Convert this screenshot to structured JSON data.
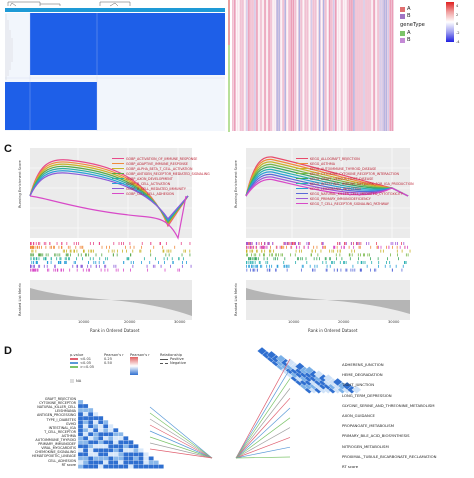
{
  "panels": {
    "c_letter": "C",
    "d_letter": "D"
  },
  "panel_b_legend": {
    "title": "geneType",
    "items": [
      {
        "label": "A",
        "color": "#e07070"
      },
      {
        "label": "B",
        "color": "#a074c4"
      },
      {
        "label": "A",
        "color": "#7cc46a"
      },
      {
        "label": "B",
        "color": "#c48ad6"
      }
    ],
    "scale": [
      "4",
      "2",
      "0",
      "-2",
      "-4"
    ]
  },
  "gsea_left": {
    "ylabel_top": "Running Enrichment Score",
    "ylabel_bottom": "Ranked List Metric",
    "xlabel": "Rank in Ordered Dataset",
    "yticks": [
      "0.6",
      "0.4",
      "0.2",
      "0.0",
      "-0.2",
      "-0.4"
    ],
    "xticks": [
      "10000",
      "20000",
      "30000"
    ],
    "terms": [
      {
        "label": "GOBP_ACTIVATION_OF_IMMUNE_RESPONSE",
        "color": "#e84a8a"
      },
      {
        "label": "GOBP_ADAPTIVE_IMMUNE_RESPONSE",
        "color": "#f08a3c"
      },
      {
        "label": "GOBP_ALPHA_BETA_T_CELL_ACTIVATION",
        "color": "#c9b42c"
      },
      {
        "label": "GOBP_ANTIGEN_RECEPTOR_MEDIATED_SIGNALING",
        "color": "#5aa84a"
      },
      {
        "label": "GOBP_AXON_DEVELOPMENT",
        "color": "#2ab0a0"
      },
      {
        "label": "GOBP_B_CELL_ACTIVATION",
        "color": "#2a9fd8"
      },
      {
        "label": "GOBP_B_CELL_MEDIATED_IMMUNITY",
        "color": "#8a5ad8"
      },
      {
        "label": "GOBP_CELL_CELL_ADHESION",
        "color": "#d84ac8"
      }
    ]
  },
  "gsea_right": {
    "ylabel_top": "Running Enrichment Score",
    "ylabel_bottom": "Ranked List Metric",
    "xlabel": "Rank in Ordered Dataset",
    "xticks": [
      "10000",
      "20000",
      "30000"
    ],
    "terms": [
      {
        "label": "KEGG_ALLOGRAFT_REJECTION",
        "color": "#e84a6a"
      },
      {
        "label": "KEGG_ASTHMA",
        "color": "#f08a3c"
      },
      {
        "label": "KEGG_AUTOIMMUNE_THYROID_DISEASE",
        "color": "#c9b42c"
      },
      {
        "label": "KEGG_CYTOKINE_CYTOKINE_RECEPTOR_INTERACTION",
        "color": "#7ab84a"
      },
      {
        "label": "KEGG_GRAFT_VERSUS_HOST_DISEASE",
        "color": "#3aa860"
      },
      {
        "label": "KEGG_INTESTINAL_IMMUNE_NETWORK_FOR_IGA_PRODUCTION",
        "color": "#2ab0b0"
      },
      {
        "label": "KEGG_LEISHMANIA_INFECTION",
        "color": "#2a9fd8"
      },
      {
        "label": "KEGG_NATURAL_KILLER_CELL_MEDIATED_CYTOTOXICITY",
        "color": "#5a6ad8"
      },
      {
        "label": "KEGG_PRIMARY_IMMUNODEFICIENCY",
        "color": "#a05ad8"
      },
      {
        "label": "KEGG_T_CELL_RECEPTOR_SIGNALING_PATHWAY",
        "color": "#d84ac8"
      }
    ]
  },
  "panel_d": {
    "legend": {
      "p_title": "p-value",
      "p_items": [
        "<0.01",
        "<0.05",
        ">=0.05"
      ],
      "r_title": "Pearson's r",
      "r_items": [
        "0.25",
        "0.50"
      ],
      "r2_title": "Pearson's r",
      "r2_items": [
        "-1.0",
        "-0.5",
        "0",
        "0.5",
        "1.0"
      ],
      "rel_title": "Relationship",
      "rel_items": [
        "Positive",
        "Negative"
      ],
      "na_label": "NA"
    },
    "right_labels": [
      "ADHERENS_JUNCTION",
      "HEME_DEGRADATION",
      "TIGHT_JUNCTION",
      "LONG_TERM_DEPRESSION",
      "GLYCINE_SERINE_AND_THREONINE_METABOLISM",
      "AXON_GUIDANCE",
      "PROPANOATE_METABOLISM",
      "PRIMARY_BILE_ACID_BIOSYNTHESIS",
      "NITROGEN_METABOLISM",
      "PROXIMAL_TUBULE_BICARBONATE_RECLAMATION",
      "RT score"
    ],
    "left_labels": [
      "GRAFT_REJECTION",
      "CYTOKINE_RECEPTOR",
      "NATURAL_KILLER_CELL",
      "LEISHMANIA",
      "ANTIGEN_PROCESSING",
      "TYPE_I_DIABETES",
      "GVHD",
      "INTESTINAL_IGA",
      "T_CELL_RECEPTOR",
      "ASTHMA",
      "AUTOIMMUNE_THYROID",
      "PRIMARY_IMMUNODEF",
      "VIRAL_MYOCARDITIS",
      "CHEMOKINE_SIGNALING",
      "HEMATOPOIETIC_LINEAGE",
      "CELL_ADHESION",
      "RT score"
    ]
  }
}
